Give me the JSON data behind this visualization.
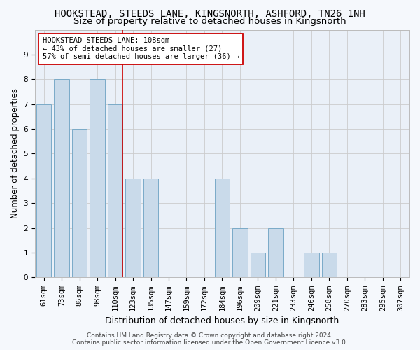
{
  "title": "HOOKSTEAD, STEEDS LANE, KINGSNORTH, ASHFORD, TN26 1NH",
  "subtitle": "Size of property relative to detached houses in Kingsnorth",
  "xlabel": "Distribution of detached houses by size in Kingsnorth",
  "ylabel": "Number of detached properties",
  "categories": [
    "61sqm",
    "73sqm",
    "86sqm",
    "98sqm",
    "110sqm",
    "123sqm",
    "135sqm",
    "147sqm",
    "159sqm",
    "172sqm",
    "184sqm",
    "196sqm",
    "209sqm",
    "221sqm",
    "233sqm",
    "246sqm",
    "258sqm",
    "270sqm",
    "283sqm",
    "295sqm",
    "307sqm"
  ],
  "values": [
    7,
    8,
    6,
    8,
    7,
    4,
    4,
    0,
    0,
    0,
    4,
    2,
    1,
    2,
    0,
    1,
    1,
    0,
    0,
    0,
    0
  ],
  "bar_color": "#c9daea",
  "bar_edge_color": "#7aaac8",
  "highlight_index": 4,
  "highlight_line_color": "#cc0000",
  "annotation_text": "HOOKSTEAD STEEDS LANE: 108sqm\n← 43% of detached houses are smaller (27)\n57% of semi-detached houses are larger (36) →",
  "annotation_box_facecolor": "#ffffff",
  "annotation_box_edgecolor": "#cc0000",
  "ylim": [
    0,
    10
  ],
  "yticks": [
    0,
    1,
    2,
    3,
    4,
    5,
    6,
    7,
    8,
    9,
    10
  ],
  "grid_color": "#cccccc",
  "fig_facecolor": "#f5f8fc",
  "ax_facecolor": "#eaf0f8",
  "footer_line1": "Contains HM Land Registry data © Crown copyright and database right 2024.",
  "footer_line2": "Contains public sector information licensed under the Open Government Licence v3.0.",
  "title_fontsize": 10,
  "subtitle_fontsize": 9.5,
  "xlabel_fontsize": 9,
  "ylabel_fontsize": 8.5,
  "tick_fontsize": 7.5,
  "annotation_fontsize": 7.5,
  "footer_fontsize": 6.5
}
